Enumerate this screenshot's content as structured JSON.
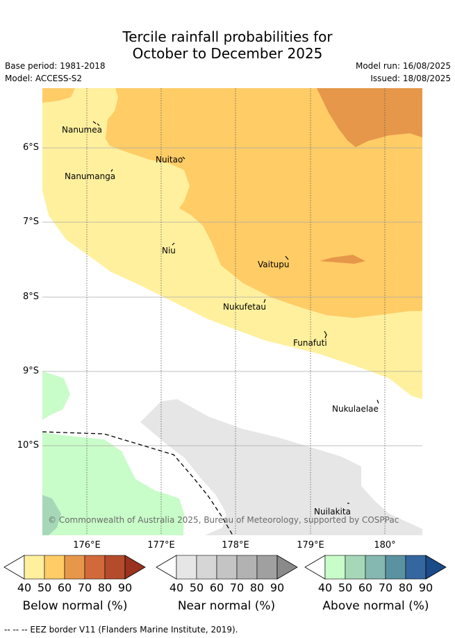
{
  "title_line1": "Tercile rainfall probabilities for",
  "title_line2": "October to December 2025",
  "base_period": "Base period: 1981-2018",
  "model": "Model: ACCESS-S2",
  "model_run": "Model run: 16/08/2025",
  "issued": "Issued: 18/08/2025",
  "lat_ticks": [
    "6°S",
    "7°S",
    "8°S",
    "9°S",
    "10°S"
  ],
  "lon_ticks": [
    "176°E",
    "177°E",
    "178°E",
    "179°E",
    "180°"
  ],
  "places": [
    {
      "name": "Nanumea"
    },
    {
      "name": "Nuitao"
    },
    {
      "name": "Nanumanga"
    },
    {
      "name": "Niu"
    },
    {
      "name": "Vaitupu"
    },
    {
      "name": "Nukufetau"
    },
    {
      "name": "Funafuti"
    },
    {
      "name": "Nukulaelae"
    },
    {
      "name": "Nuilakita"
    }
  ],
  "copyright": "© Commonwealth of Australia 2025, Bureau of Meteorology, supported by COSPPac",
  "legends": [
    {
      "title": "Below normal (%)",
      "ticks": [
        "40",
        "50",
        "60",
        "70",
        "80",
        "90"
      ],
      "colors": [
        "#fff09e",
        "#ffcc66",
        "#e6974a",
        "#d2693a",
        "#b44c2c",
        "#99321f"
      ]
    },
    {
      "title": "Near normal (%)",
      "ticks": [
        "40",
        "50",
        "60",
        "70",
        "80",
        "90"
      ],
      "colors": [
        "#e6e6e6",
        "#d6d6d6",
        "#c4c4c4",
        "#b2b2b2",
        "#a0a0a0",
        "#8a8a8a"
      ]
    },
    {
      "title": "Above normal (%)",
      "ticks": [
        "40",
        "50",
        "60",
        "70",
        "80",
        "90"
      ],
      "colors": [
        "#c8fcc8",
        "#a6d8b8",
        "#84b8b0",
        "#5a92a0",
        "#3466a0",
        "#1a4a88"
      ]
    }
  ],
  "eez_note": "--  --  -- EEZ border V11 (Flanders Marine Institute, 2019)."
}
